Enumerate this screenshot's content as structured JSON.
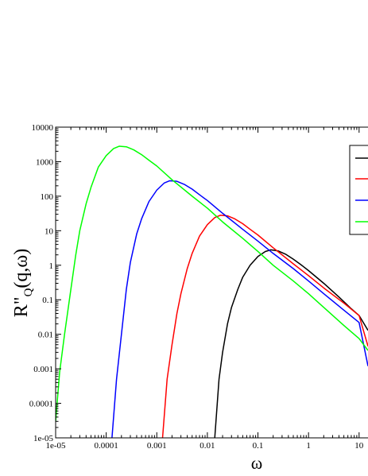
{
  "chart_data": {
    "type": "line",
    "title": "",
    "xlabel": "ω",
    "ylabel_main": "R\"",
    "ylabel_sub": "Q",
    "ylabel_rest": "(q,ω)",
    "x_scale": "log",
    "y_scale": "log",
    "xlim": [
      1e-05,
      15
    ],
    "ylim": [
      1e-05,
      10000
    ],
    "x_ticks": [
      {
        "value": 1e-05,
        "label": "1e-05"
      },
      {
        "value": 0.0001,
        "label": "0.0001"
      },
      {
        "value": 0.001,
        "label": "0.001"
      },
      {
        "value": 0.01,
        "label": "0.01"
      },
      {
        "value": 0.1,
        "label": "0.1"
      },
      {
        "value": 1,
        "label": "1"
      },
      {
        "value": 10,
        "label": "10"
      }
    ],
    "y_ticks": [
      {
        "value": 1e-05,
        "label": "1e-05"
      },
      {
        "value": 0.0001,
        "label": "0.0001"
      },
      {
        "value": 0.001,
        "label": "0.001"
      },
      {
        "value": 0.01,
        "label": "0.01"
      },
      {
        "value": 0.1,
        "label": "0.1"
      },
      {
        "value": 1,
        "label": "1"
      },
      {
        "value": 10,
        "label": "10"
      },
      {
        "value": 100,
        "label": "100"
      },
      {
        "value": 1000,
        "label": "1000"
      },
      {
        "value": 10000,
        "label": "10000"
      }
    ],
    "grid": false,
    "legend": "top-right",
    "series": [
      {
        "color": "#000000",
        "peak_x": 0.18,
        "peak_y": 2.8,
        "x": [
          0.014,
          0.017,
          0.02,
          0.025,
          0.03,
          0.04,
          0.05,
          0.07,
          0.1,
          0.14,
          0.18,
          0.25,
          0.35,
          0.5,
          0.7,
          1,
          2,
          4,
          7,
          10,
          15
        ],
        "y": [
          1e-05,
          0.0005,
          0.003,
          0.02,
          0.06,
          0.2,
          0.45,
          1.0,
          1.8,
          2.5,
          2.8,
          2.6,
          2.1,
          1.5,
          1.05,
          0.7,
          0.3,
          0.12,
          0.055,
          0.035,
          0.013
        ]
      },
      {
        "color": "#ff0000",
        "peak_x": 0.018,
        "peak_y": 28,
        "x": [
          0.0013,
          0.0016,
          0.002,
          0.0025,
          0.003,
          0.004,
          0.005,
          0.007,
          0.01,
          0.014,
          0.018,
          0.025,
          0.035,
          0.05,
          0.07,
          0.1,
          0.2,
          0.5,
          1,
          2,
          5,
          10,
          15
        ],
        "y": [
          1e-05,
          0.0005,
          0.005,
          0.04,
          0.15,
          0.8,
          2.2,
          7,
          15,
          24,
          28,
          27,
          22,
          16,
          11,
          7.5,
          3.2,
          1.1,
          0.5,
          0.22,
          0.08,
          0.035,
          0.0045
        ]
      },
      {
        "color": "#0000ff",
        "peak_x": 0.0018,
        "peak_y": 280,
        "x": [
          0.00013,
          0.00016,
          0.0002,
          0.00025,
          0.0003,
          0.0004,
          0.0005,
          0.0007,
          0.001,
          0.0014,
          0.0018,
          0.0025,
          0.0035,
          0.005,
          0.007,
          0.01,
          0.02,
          0.05,
          0.1,
          0.2,
          0.5,
          1,
          2,
          5,
          10,
          15
        ],
        "y": [
          1e-05,
          0.0005,
          0.01,
          0.2,
          1.2,
          8,
          22,
          70,
          150,
          240,
          280,
          270,
          220,
          160,
          110,
          75,
          32,
          11,
          5,
          2.2,
          0.8,
          0.35,
          0.15,
          0.05,
          0.022,
          0.0012
        ]
      },
      {
        "color": "#00ff00",
        "peak_x": 0.00018,
        "peak_y": 2800,
        "x": [
          1e-05,
          1.2e-05,
          1.5e-05,
          2e-05,
          2.5e-05,
          3e-05,
          4e-05,
          5e-05,
          7e-05,
          0.0001,
          0.00014,
          0.00018,
          0.00025,
          0.00035,
          0.0005,
          0.0007,
          0.001,
          0.002,
          0.005,
          0.01,
          0.02,
          0.05,
          0.1,
          0.2,
          0.5,
          1,
          2,
          5,
          10,
          15
        ],
        "y": [
          3e-05,
          0.0008,
          0.01,
          0.2,
          2,
          10,
          60,
          180,
          700,
          1500,
          2400,
          2800,
          2700,
          2200,
          1600,
          1100,
          750,
          300,
          100,
          45,
          18,
          6,
          2.5,
          1.0,
          0.35,
          0.15,
          0.06,
          0.018,
          0.0075,
          0.0034
        ]
      }
    ]
  }
}
